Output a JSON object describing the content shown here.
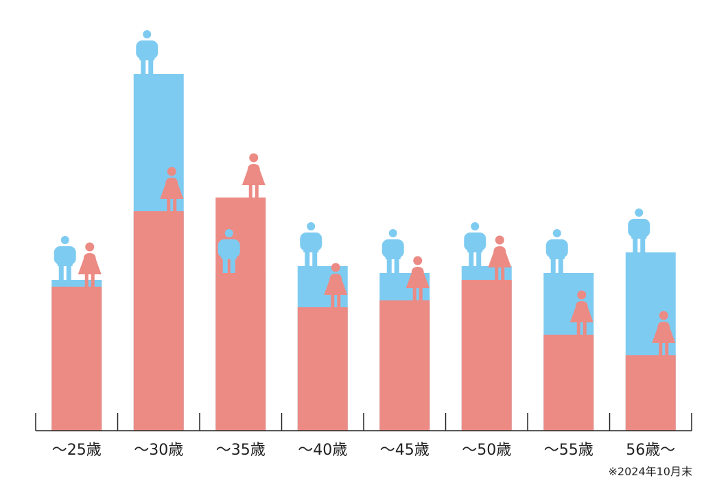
{
  "chart_data": {
    "type": "bar",
    "categories": [
      "～25歳",
      "～30歳",
      "～35歳",
      "～40歳",
      "～45歳",
      "～50歳",
      "～55歳",
      "56歳～"
    ],
    "series": [
      {
        "values": [
          22,
          52,
          23,
          24,
          23,
          24,
          23,
          26
        ]
      },
      {
        "values": [
          21,
          32,
          34,
          18,
          19,
          22,
          14,
          11
        ]
      }
    ],
    "ylim": [
      0,
      60
    ],
    "grid": false,
    "legend": "none",
    "icons": [
      "male-icon",
      "female-icon"
    ],
    "colors": {
      "male": "#7ecbf1",
      "female": "#ec8a84",
      "axis": "#222222"
    }
  },
  "note": "※2024年10月末"
}
